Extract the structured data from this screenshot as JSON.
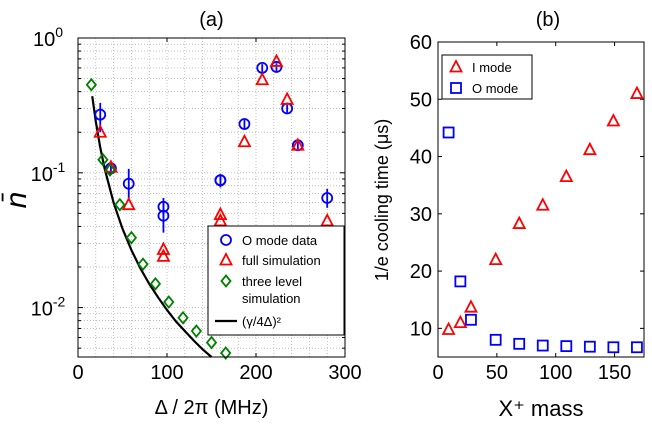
{
  "colors": {
    "red": "#ff0000",
    "blue": "#0000ff",
    "green": "#007f00",
    "black": "#000000",
    "grid": "#9a9a9a"
  },
  "chart_data": [
    {
      "panel": "(a)",
      "type": "scatter",
      "title": "(a)",
      "xlabel": "Δ / 2π (MHz)",
      "ylabel": "n̄",
      "xlim": [
        0,
        300
      ],
      "ylim": [
        0.0043,
        1
      ],
      "yscale": "log",
      "xticks": [
        0,
        100,
        200,
        300
      ],
      "xtick_labels": [
        "0",
        "100",
        "200",
        "300"
      ],
      "yticks": [
        0.01,
        0.1,
        1
      ],
      "ytick_labels": [
        {
          "base": "10",
          "exp": "-2"
        },
        {
          "base": "10",
          "exp": "-1"
        },
        {
          "base": "10",
          "exp": "0"
        }
      ],
      "grid": true,
      "legend_position": "lower-right",
      "series": [
        {
          "name": "O mode data",
          "marker": "circle",
          "color": "#0000ff",
          "points": [
            {
              "x": 25,
              "y": 0.27,
              "err": [
                0.2,
                0.33
              ]
            },
            {
              "x": 37,
              "y": 0.108,
              "err": [
                0.1,
                0.118
              ]
            },
            {
              "x": 57,
              "y": 0.083,
              "err": [
                0.062,
                0.107
              ]
            },
            {
              "x": 96,
              "y": 0.056,
              "err": [
                0.046,
                0.065
              ]
            },
            {
              "x": 96,
              "y": 0.048,
              "err": [
                0.036,
                0.061
              ]
            },
            {
              "x": 160,
              "y": 0.088,
              "err": [
                0.078,
                0.098
              ]
            },
            {
              "x": 160,
              "y": 0.088,
              "err": [
                0.082,
                0.095
              ]
            },
            {
              "x": 187,
              "y": 0.23,
              "err": [
                0.21,
                0.25
              ]
            },
            {
              "x": 207,
              "y": 0.6,
              "err": [
                0.56,
                0.64
              ]
            },
            {
              "x": 223,
              "y": 0.61,
              "err": [
                0.57,
                0.65
              ]
            },
            {
              "x": 235,
              "y": 0.3,
              "err": [
                0.28,
                0.32
              ]
            },
            {
              "x": 247,
              "y": 0.16,
              "err": [
                0.15,
                0.17
              ]
            },
            {
              "x": 280,
              "y": 0.065,
              "err": [
                0.055,
                0.076
              ]
            }
          ]
        },
        {
          "name": "full simulation",
          "marker": "triangle",
          "color": "#ff0000",
          "points": [
            {
              "x": 25,
              "y": 0.2
            },
            {
              "x": 37,
              "y": 0.11
            },
            {
              "x": 57,
              "y": 0.058
            },
            {
              "x": 96,
              "y": 0.027
            },
            {
              "x": 96,
              "y": 0.024
            },
            {
              "x": 160,
              "y": 0.049
            },
            {
              "x": 160,
              "y": 0.044
            },
            {
              "x": 187,
              "y": 0.17
            },
            {
              "x": 207,
              "y": 0.49
            },
            {
              "x": 223,
              "y": 0.67
            },
            {
              "x": 235,
              "y": 0.35
            },
            {
              "x": 247,
              "y": 0.16
            },
            {
              "x": 280,
              "y": 0.044
            }
          ]
        },
        {
          "name": "three level simulation",
          "marker": "diamond",
          "color": "#007f00",
          "points": [
            {
              "x": 15,
              "y": 0.45
            },
            {
              "x": 28,
              "y": 0.125
            },
            {
              "x": 36,
              "y": 0.105
            },
            {
              "x": 47,
              "y": 0.058
            },
            {
              "x": 60,
              "y": 0.033
            },
            {
              "x": 73,
              "y": 0.021
            },
            {
              "x": 87,
              "y": 0.015
            },
            {
              "x": 102,
              "y": 0.011
            },
            {
              "x": 118,
              "y": 0.0084
            },
            {
              "x": 133,
              "y": 0.0067
            },
            {
              "x": 150,
              "y": 0.0055
            },
            {
              "x": 166,
              "y": 0.0046
            }
          ]
        },
        {
          "name": "(γ/4Δ)²",
          "type": "line",
          "color": "#000000",
          "points": [
            {
              "x": 16,
              "y": 0.37
            },
            {
              "x": 20,
              "y": 0.24
            },
            {
              "x": 25,
              "y": 0.154
            },
            {
              "x": 30,
              "y": 0.107
            },
            {
              "x": 40,
              "y": 0.06
            },
            {
              "x": 50,
              "y": 0.0385
            },
            {
              "x": 60,
              "y": 0.0267
            },
            {
              "x": 70,
              "y": 0.0196
            },
            {
              "x": 80,
              "y": 0.015
            },
            {
              "x": 90,
              "y": 0.0119
            },
            {
              "x": 100,
              "y": 0.0096
            },
            {
              "x": 110,
              "y": 0.0079
            },
            {
              "x": 120,
              "y": 0.0067
            },
            {
              "x": 130,
              "y": 0.0057
            },
            {
              "x": 140,
              "y": 0.0049
            },
            {
              "x": 150,
              "y": 0.0043
            }
          ]
        }
      ],
      "legend": [
        {
          "marker": "circle",
          "color": "#0000ff",
          "lines": [
            "O mode data"
          ]
        },
        {
          "marker": "triangle",
          "color": "#ff0000",
          "lines": [
            "full simulation"
          ]
        },
        {
          "marker": "diamond",
          "color": "#007f00",
          "lines": [
            "three level",
            "simulation"
          ]
        },
        {
          "marker": "line",
          "color": "#000000",
          "lines": [
            "(γ/4Δ)²"
          ]
        }
      ]
    },
    {
      "panel": "(b)",
      "type": "scatter",
      "title": "(b)",
      "xlabel": "X⁺ mass",
      "ylabel": "1/e cooling time (μs)",
      "xlim": [
        0,
        175
      ],
      "ylim": [
        5,
        60
      ],
      "xticks": [
        0,
        50,
        100,
        150
      ],
      "xtick_labels": [
        "0",
        "50",
        "100",
        "150"
      ],
      "yticks": [
        10,
        20,
        30,
        40,
        50,
        60
      ],
      "ytick_labels": [
        "10",
        "20",
        "30",
        "40",
        "50",
        "60"
      ],
      "grid": false,
      "legend_position": "top-left",
      "series": [
        {
          "name": "I mode",
          "marker": "triangle",
          "color": "#ff0000",
          "points": [
            {
              "x": 9,
              "y": 9.8
            },
            {
              "x": 19,
              "y": 11
            },
            {
              "x": 28,
              "y": 13.7
            },
            {
              "x": 49,
              "y": 22
            },
            {
              "x": 69,
              "y": 28.3
            },
            {
              "x": 89,
              "y": 31.5
            },
            {
              "x": 109,
              "y": 36.5
            },
            {
              "x": 129,
              "y": 41.2
            },
            {
              "x": 149,
              "y": 46.2
            },
            {
              "x": 169,
              "y": 51
            }
          ]
        },
        {
          "name": "O mode",
          "marker": "square",
          "color": "#0000ff",
          "points": [
            {
              "x": 9,
              "y": 44.2
            },
            {
              "x": 19,
              "y": 18.2
            },
            {
              "x": 28,
              "y": 11.5
            },
            {
              "x": 49,
              "y": 8
            },
            {
              "x": 69,
              "y": 7.3
            },
            {
              "x": 89,
              "y": 7
            },
            {
              "x": 109,
              "y": 6.9
            },
            {
              "x": 129,
              "y": 6.8
            },
            {
              "x": 149,
              "y": 6.7
            },
            {
              "x": 169,
              "y": 6.7
            }
          ]
        }
      ],
      "legend": [
        {
          "marker": "triangle",
          "color": "#ff0000",
          "lines": [
            "I mode"
          ]
        },
        {
          "marker": "square",
          "color": "#0000ff",
          "lines": [
            "O mode"
          ]
        }
      ]
    }
  ]
}
